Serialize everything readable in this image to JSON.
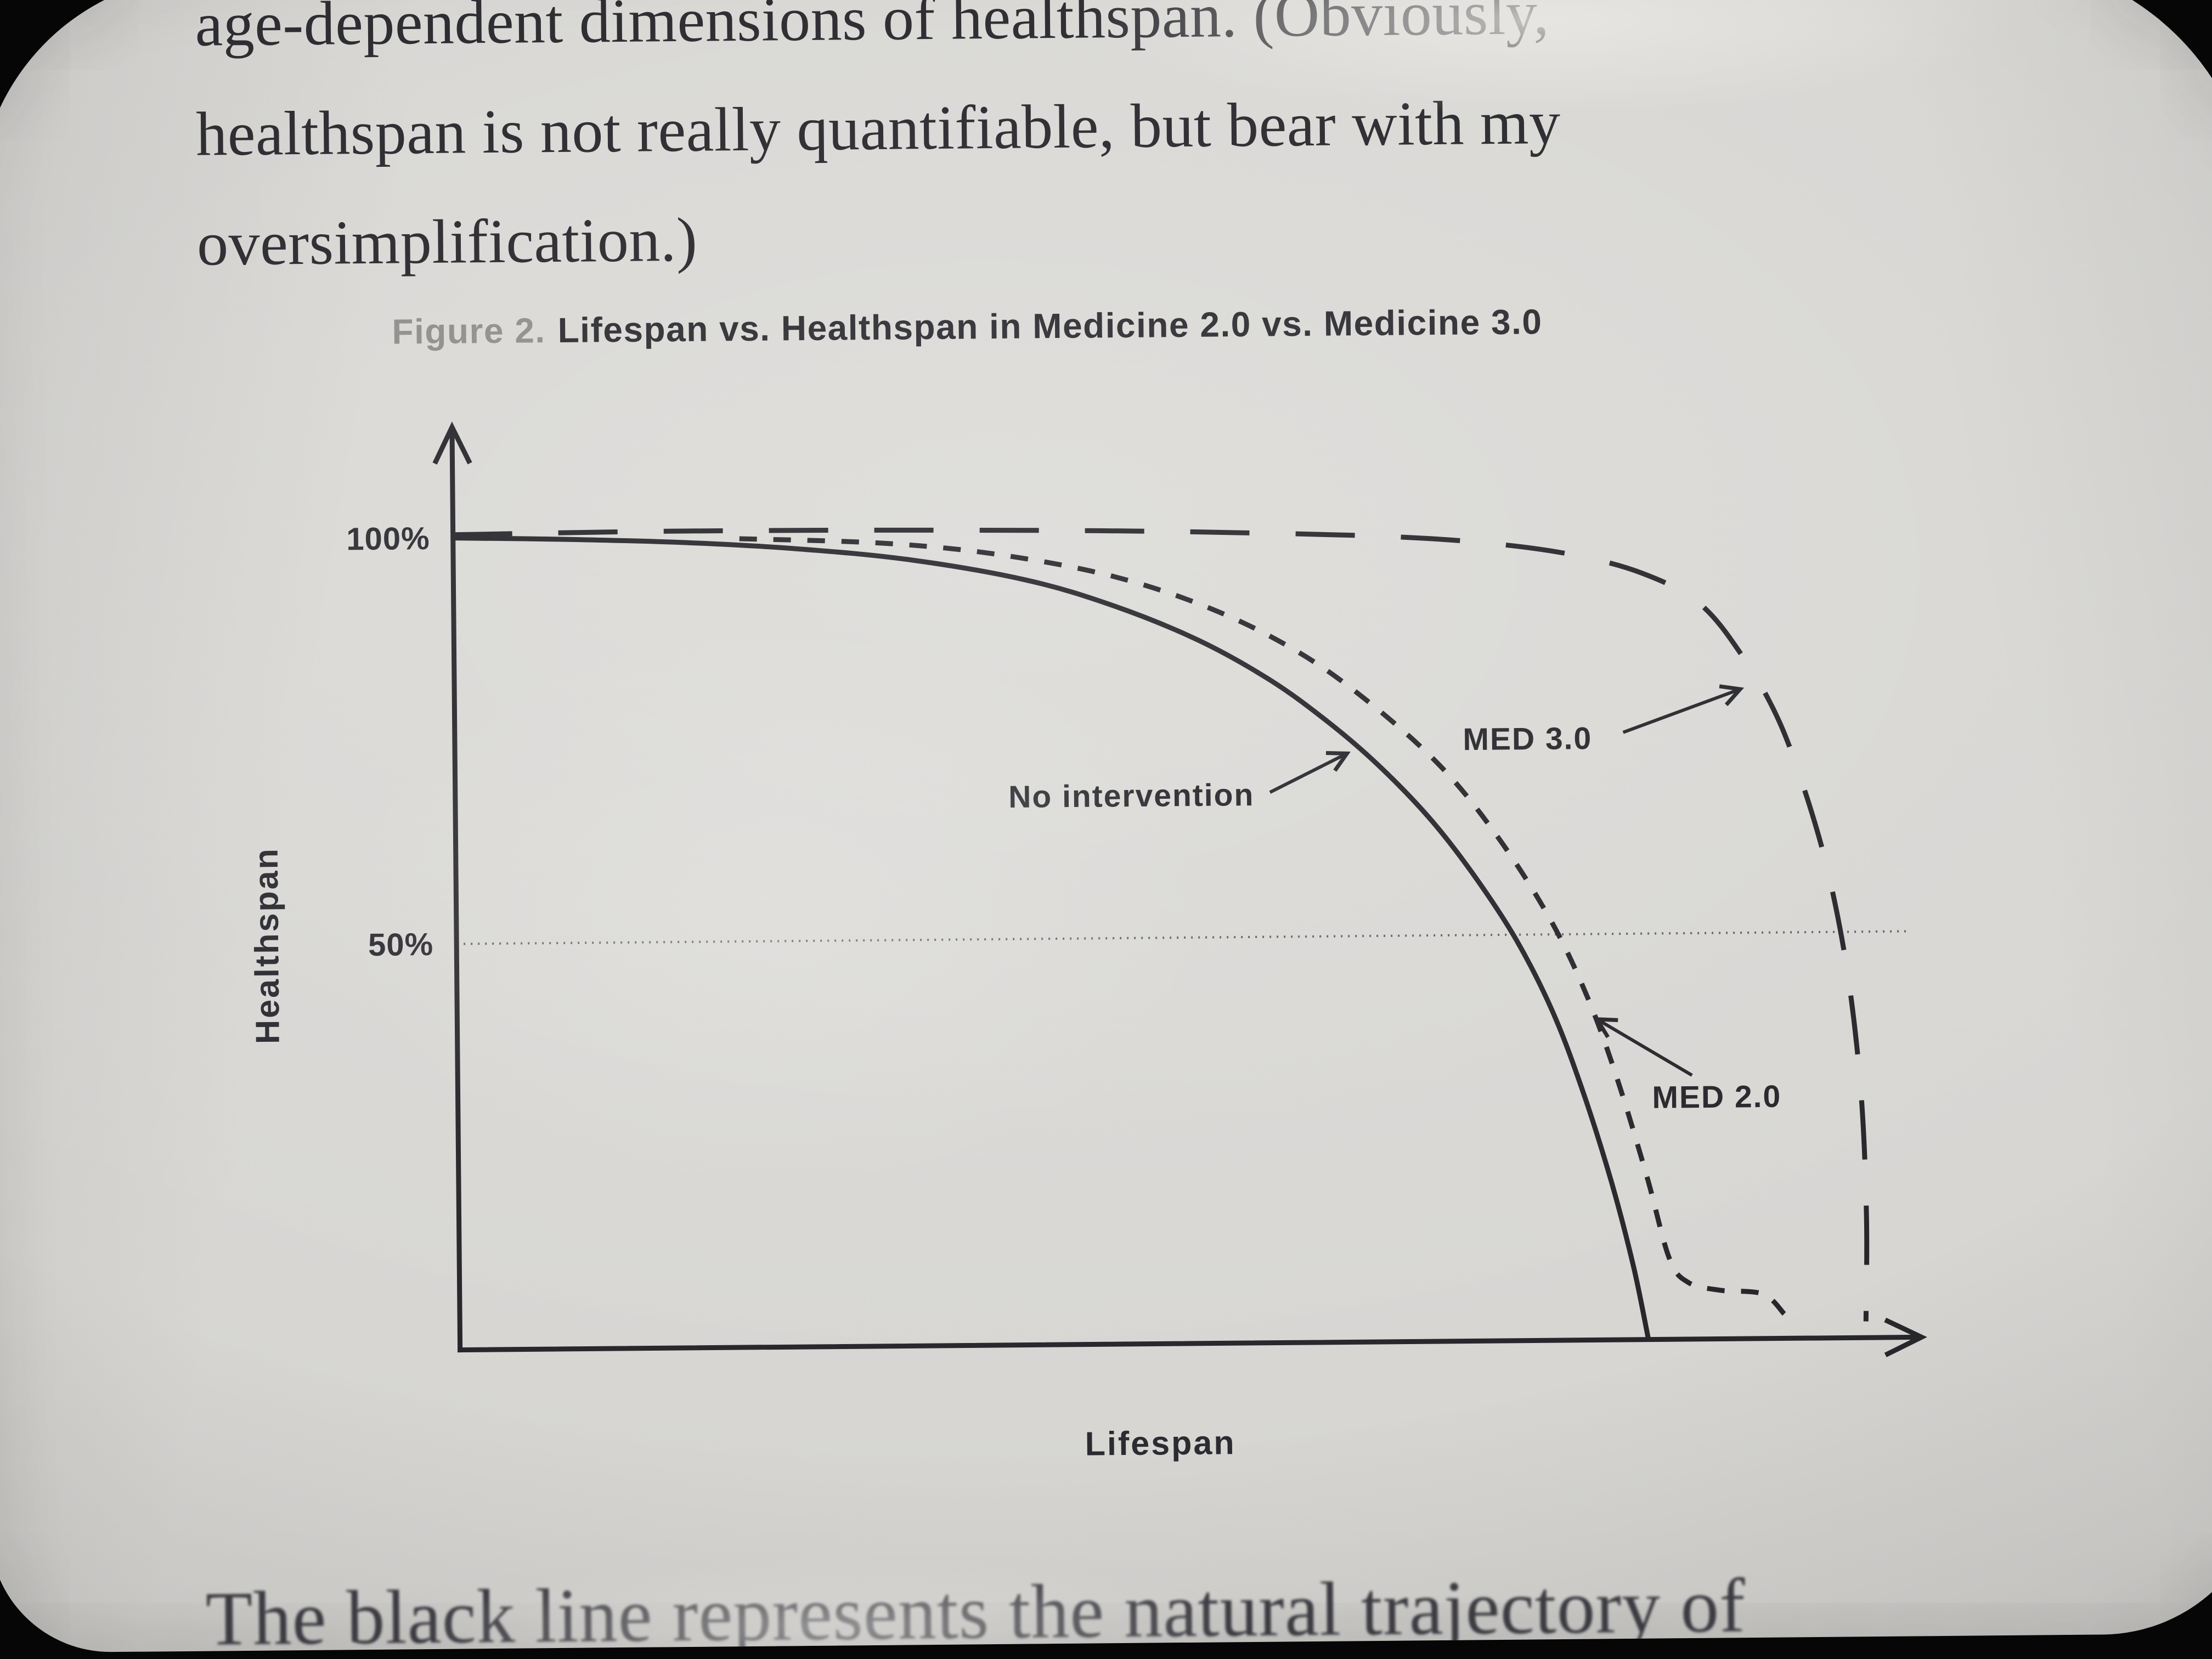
{
  "photo": {
    "background": "#060607",
    "paper": "#d7d6d3",
    "ink": "#26262b",
    "caption_gray": "#8e8d8b"
  },
  "page": {
    "top_paragraph": {
      "lines": [
        "age-dependent dimensions of healthspan. (Obviously,",
        "healthspan is not really quantifiable, but bear with my",
        "oversimplification.)"
      ]
    },
    "caption": {
      "prefix": "Figure 2.",
      "title": "Lifespan vs. Healthspan in Medicine 2.0 vs. Medicine 3.0"
    },
    "bottom_paragraph": "The black line represents the natural trajectory of"
  },
  "chart_data": {
    "type": "line",
    "title": "Figure 2. Lifespan vs. Healthspan in Medicine 2.0 vs. Medicine 3.0",
    "xlabel": "Lifespan",
    "ylabel": "Healthspan",
    "xlim": [
      0,
      100
    ],
    "ylim": [
      0,
      100
    ],
    "grid": "single dotted horizontal reference line at 50%",
    "legend": "none (inline arrow annotations)",
    "yticks": [
      {
        "value": 100,
        "label": "100%"
      },
      {
        "value": 50,
        "label": "50%"
      }
    ],
    "reference_line": {
      "y": 50,
      "style": "dotted"
    },
    "series": [
      {
        "name": "No intervention",
        "line_style": "solid",
        "points": [
          [
            0,
            100
          ],
          [
            8,
            99.7
          ],
          [
            16,
            99.2
          ],
          [
            24,
            98.3
          ],
          [
            32,
            96.8
          ],
          [
            40,
            94.2
          ],
          [
            46,
            91.0
          ],
          [
            52,
            86.6
          ],
          [
            57,
            81.6
          ],
          [
            61,
            76.4
          ],
          [
            64.5,
            71.0
          ],
          [
            68,
            64.5
          ],
          [
            71,
            57.6
          ],
          [
            74,
            49.4
          ],
          [
            76.5,
            40.5
          ],
          [
            78.5,
            31.0
          ],
          [
            80.5,
            19.5
          ],
          [
            82,
            9.0
          ],
          [
            83,
            0
          ]
        ]
      },
      {
        "name": "MED 2.0",
        "line_style": "short-dash",
        "points": [
          [
            20,
            99.6
          ],
          [
            30,
            98.9
          ],
          [
            38,
            97.4
          ],
          [
            46,
            94.6
          ],
          [
            53,
            90.4
          ],
          [
            59,
            85.0
          ],
          [
            64,
            78.6
          ],
          [
            69,
            70.5
          ],
          [
            73,
            61.5
          ],
          [
            76.5,
            51.5
          ],
          [
            79,
            42.0
          ],
          [
            81,
            32.0
          ],
          [
            83,
            20.0
          ],
          [
            84.5,
            10.0
          ],
          [
            85.8,
            7.0
          ],
          [
            88,
            6.0
          ],
          [
            91,
            5.5
          ],
          [
            92.5,
            3.0
          ]
        ]
      },
      {
        "name": "MED 3.0",
        "line_style": "long-dash",
        "points": [
          [
            0,
            100.4
          ],
          [
            15,
            100.6
          ],
          [
            30,
            100.5
          ],
          [
            45,
            100.2
          ],
          [
            55,
            99.8
          ],
          [
            65,
            99.2
          ],
          [
            72,
            98.3
          ],
          [
            78,
            96.8
          ],
          [
            83,
            94.4
          ],
          [
            87,
            90.6
          ],
          [
            90,
            84.0
          ],
          [
            92.5,
            76.0
          ],
          [
            94.5,
            66.0
          ],
          [
            96,
            56.0
          ],
          [
            97.2,
            44.0
          ],
          [
            98,
            30.0
          ],
          [
            98.3,
            15.0
          ],
          [
            98.2,
            2.0
          ]
        ]
      }
    ],
    "annotations": [
      {
        "label": "No intervention",
        "text_anchor": "end",
        "x": 55.8,
        "y": 66.2,
        "arrow": {
          "x1": 56.9,
          "y1": 67.8,
          "x2": 62.3,
          "y2": 72.5
        }
      },
      {
        "label": "MED 3.0",
        "text_anchor": "start",
        "x": 70.4,
        "y": 72.8,
        "arrow": {
          "x1": 81.6,
          "y1": 74.8,
          "x2": 89.8,
          "y2": 80.0
        }
      },
      {
        "label": "MED 2.0",
        "text_anchor": "start",
        "x": 83.4,
        "y": 28.5,
        "arrow": {
          "x1": 86.2,
          "y1": 32.5,
          "x2": 79.6,
          "y2": 39.5
        }
      }
    ]
  }
}
